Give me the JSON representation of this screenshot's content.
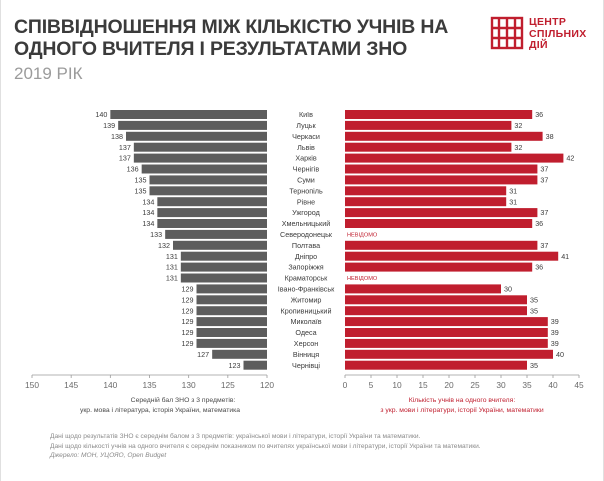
{
  "header": {
    "title_line1": "СПІВВІДНОШЕННЯ МІЖ КІЛЬКІСТЮ УЧНІВ НА",
    "title_line2": "ОДНОГО ВЧИТЕЛЯ І РЕЗУЛЬТАТАМИ ЗНО",
    "year": "2019 РІК"
  },
  "logo": {
    "line1": "ЦЕНТР",
    "line2": "СПІЛЬНИХ",
    "line3": "ДІЙ"
  },
  "footnotes": {
    "line1": "Дані щодо результатів ЗНО є середнім балом з 3 предметів: української мови і літератури, історії України та математики.",
    "line2": "Дані щодо кількості учнів на одного вчителя є середнім показником по вчителях української мови і літератури, історії України та математики.",
    "source": "Джерело: МОН, УЦОЯО, Open Budget"
  },
  "colors": {
    "left_bar": "#5d5d5d",
    "right_bar": "#c01e2e",
    "title": "#3b3b3b",
    "accent": "#c01e2e"
  },
  "chart_data": [
    {
      "type": "bar",
      "orientation": "horizontal",
      "direction": "right-to-left",
      "categories": [
        "Київ",
        "Луцьк",
        "Черкаси",
        "Львів",
        "Харків",
        "Чернігів",
        "Суми",
        "Тернопіль",
        "Рівне",
        "Ужгород",
        "Хмельницький",
        "Северодонецьк",
        "Полтава",
        "Дніпро",
        "Запоріжжя",
        "Краматорськ",
        "Івано-Франківськ",
        "Житомир",
        "Кропивницький",
        "Миколаїв",
        "Одеса",
        "Херсон",
        "Вінниця",
        "Чернівці"
      ],
      "values": [
        140,
        139,
        138,
        137,
        137,
        136,
        135,
        135,
        134,
        134,
        134,
        133,
        132,
        131,
        131,
        131,
        129,
        129,
        129,
        129,
        129,
        129,
        127,
        123
      ],
      "xlim": [
        150,
        120
      ],
      "xticks": [
        150,
        145,
        140,
        135,
        130,
        125,
        120
      ],
      "xlabel_line1": "Середній бал ЗНО з 3 предметів:",
      "xlabel_line2": "укр. мова і література, історія України, математика"
    },
    {
      "type": "bar",
      "orientation": "horizontal",
      "categories": [
        "Київ",
        "Луцьк",
        "Черкаси",
        "Львів",
        "Харків",
        "Чернігів",
        "Суми",
        "Тернопіль",
        "Рівне",
        "Ужгород",
        "Хмельницький",
        "Северодонецьк",
        "Полтава",
        "Дніпро",
        "Запоріжжя",
        "Краматорськ",
        "Івано-Франківськ",
        "Житомир",
        "Кропивницький",
        "Миколаїв",
        "Одеса",
        "Херсон",
        "Вінниця",
        "Чернівці"
      ],
      "values": [
        36,
        32,
        38,
        32,
        42,
        37,
        37,
        31,
        31,
        37,
        36,
        null,
        37,
        41,
        36,
        null,
        30,
        35,
        35,
        39,
        39,
        39,
        40,
        35
      ],
      "missing_label": "НЕВІДОМО",
      "xlim": [
        0,
        45
      ],
      "xticks": [
        0,
        5,
        10,
        15,
        20,
        25,
        30,
        35,
        40,
        45
      ],
      "xlabel_line1": "Кількість учнів на одного вчителя:",
      "xlabel_line2": "з укр. мови і літератури, історії України, математики"
    }
  ]
}
